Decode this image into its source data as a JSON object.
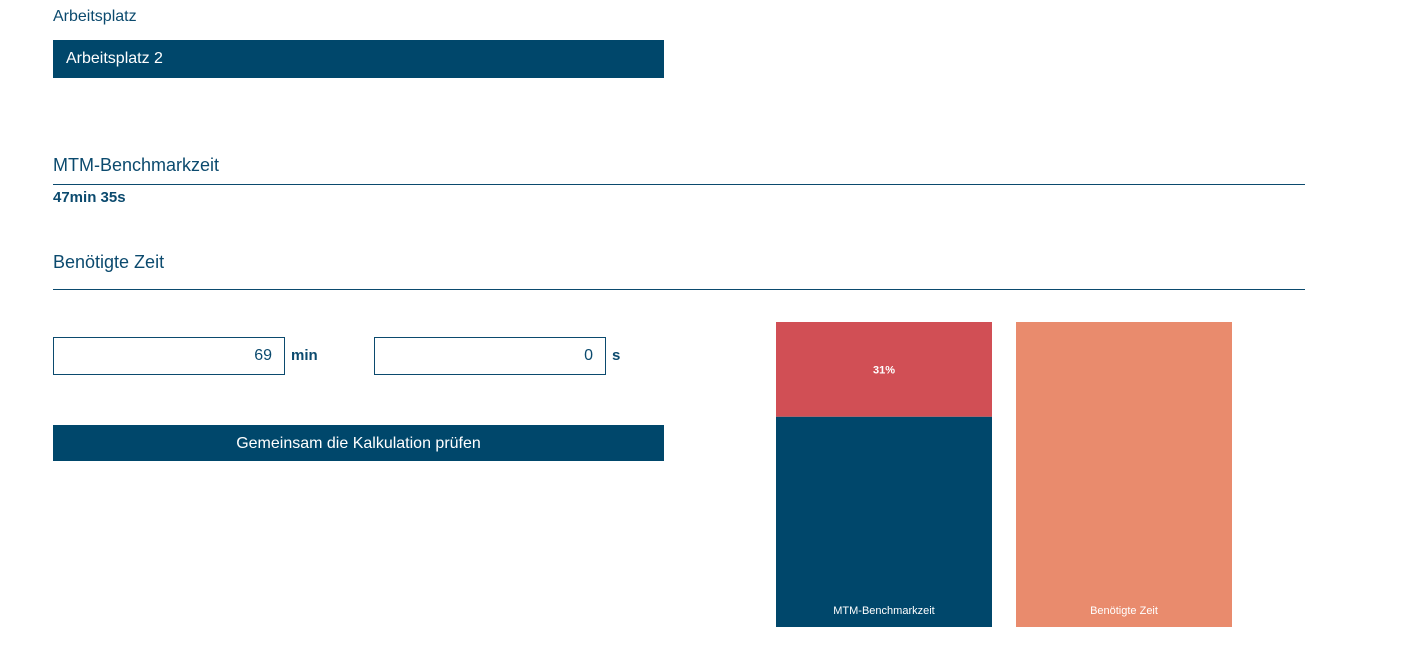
{
  "workplace": {
    "label": "Arbeitsplatz",
    "selected": "Arbeitsplatz 2"
  },
  "benchmark": {
    "title": "MTM-Benchmarkzeit",
    "value": "47min 35s"
  },
  "required": {
    "title": "Benötigte Zeit",
    "minutes_value": "69",
    "minutes_unit": "min",
    "seconds_value": "0",
    "seconds_unit": "s"
  },
  "actions": {
    "check_button": "Gemeinsam die Kalkulation prüfen"
  },
  "colors": {
    "primary": "#00476b",
    "overrun": "#d14f55",
    "required_bar": "#e98b6d",
    "text": "#0b4a6e"
  },
  "chart_data": {
    "type": "bar",
    "categories": [
      "MTM-Benchmarkzeit",
      "Benötigte Zeit"
    ],
    "series": [
      {
        "values": [
          47.58,
          69.0
        ]
      }
    ],
    "overrun_label": "31%",
    "ylim": [
      0,
      69.0
    ]
  }
}
